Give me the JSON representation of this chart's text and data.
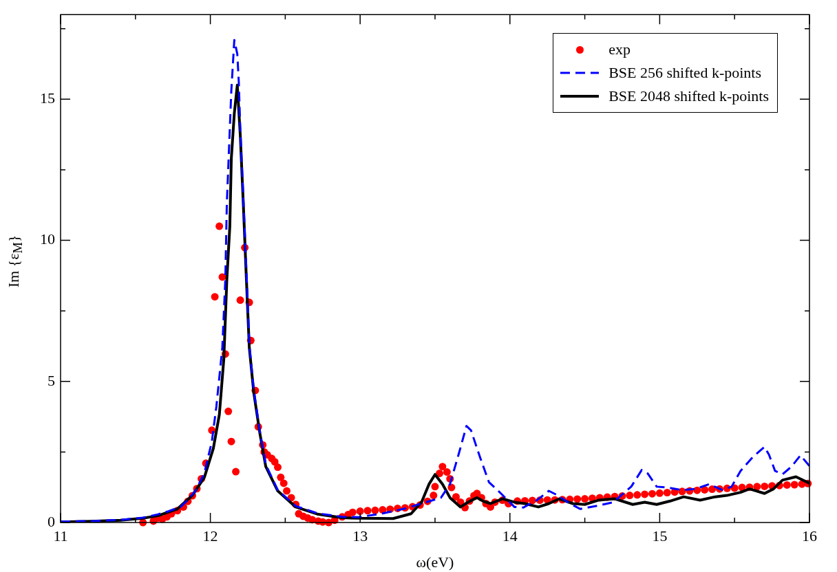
{
  "chart_data": {
    "type": "line",
    "xlabel": "ω(eV)",
    "ylabel": "Im {ε$_{M}$}",
    "xlim": [
      11,
      16
    ],
    "ylim": [
      0,
      18
    ],
    "xticks": [
      11,
      {
        "value": 11.5,
        "label": null
      },
      12,
      {
        "value": 12.5,
        "label": null
      },
      13,
      {
        "value": 13.5,
        "label": null
      },
      14,
      {
        "value": 14.5,
        "label": null
      },
      15,
      {
        "value": 15.5,
        "label": null
      },
      16
    ],
    "yticks": [
      0,
      {
        "value": 2.5,
        "label": null
      },
      5,
      {
        "value": 7.5,
        "label": null
      },
      10,
      {
        "value": 12.5,
        "label": null
      },
      15,
      {
        "value": 17.5,
        "label": null
      }
    ],
    "grid": false,
    "legend": "top right",
    "series": [
      {
        "name": "exp",
        "type": "scatter",
        "marker": "circle",
        "color": "#ff0000",
        "x": [
          11.55,
          11.62,
          11.65,
          11.68,
          11.71,
          11.74,
          11.78,
          11.82,
          11.85,
          11.88,
          11.91,
          11.94,
          11.97,
          12.01,
          12.03,
          12.06,
          12.08,
          12.1,
          12.12,
          12.14,
          12.17,
          12.2,
          12.23,
          12.26,
          12.27,
          12.3,
          12.32,
          12.35,
          12.36,
          12.38,
          12.41,
          12.43,
          12.45,
          12.47,
          12.49,
          12.51,
          12.54,
          12.57,
          12.59,
          12.62,
          12.65,
          12.68,
          12.72,
          12.75,
          12.79,
          12.83,
          12.88,
          12.92,
          12.95,
          13.0,
          13.05,
          13.1,
          13.15,
          13.2,
          13.25,
          13.3,
          13.35,
          13.4,
          13.45,
          13.49,
          13.5,
          13.53,
          13.55,
          13.58,
          13.6,
          13.61,
          13.64,
          13.67,
          13.7,
          13.73,
          13.76,
          13.78,
          13.81,
          13.84,
          13.87,
          13.9,
          13.95,
          13.99,
          14.05,
          14.1,
          14.15,
          14.2,
          14.25,
          14.3,
          14.35,
          14.4,
          14.45,
          14.5,
          14.55,
          14.6,
          14.65,
          14.7,
          14.75,
          14.8,
          14.85,
          14.9,
          14.95,
          15.0,
          15.05,
          15.1,
          15.15,
          15.2,
          15.25,
          15.3,
          15.35,
          15.4,
          15.45,
          15.5,
          15.55,
          15.6,
          15.65,
          15.7,
          15.75,
          15.8,
          15.85,
          15.9,
          15.95,
          15.99
        ],
        "values": [
          0.0,
          0.05,
          0.16,
          0.12,
          0.2,
          0.31,
          0.42,
          0.55,
          0.75,
          0.95,
          1.2,
          1.55,
          2.1,
          3.27,
          8.0,
          10.5,
          8.7,
          5.97,
          3.94,
          2.87,
          1.8,
          7.88,
          9.74,
          7.8,
          6.45,
          4.68,
          3.39,
          2.75,
          2.5,
          2.4,
          2.27,
          2.15,
          1.96,
          1.6,
          1.39,
          1.12,
          0.88,
          0.64,
          0.31,
          0.22,
          0.16,
          0.1,
          0.05,
          0.02,
          0.0,
          0.08,
          0.2,
          0.28,
          0.36,
          0.4,
          0.42,
          0.43,
          0.45,
          0.47,
          0.5,
          0.52,
          0.56,
          0.62,
          0.75,
          0.96,
          1.27,
          1.74,
          1.98,
          1.79,
          1.55,
          1.24,
          0.91,
          0.72,
          0.53,
          0.76,
          0.95,
          1.03,
          0.88,
          0.67,
          0.55,
          0.72,
          0.79,
          0.67,
          0.76,
          0.77,
          0.78,
          0.79,
          0.8,
          0.8,
          0.81,
          0.82,
          0.83,
          0.84,
          0.86,
          0.88,
          0.9,
          0.92,
          0.94,
          0.96,
          0.98,
          1.0,
          1.02,
          1.04,
          1.06,
          1.08,
          1.1,
          1.12,
          1.14,
          1.16,
          1.18,
          1.19,
          1.21,
          1.22,
          1.24,
          1.25,
          1.27,
          1.28,
          1.3,
          1.31,
          1.33,
          1.34,
          1.36,
          1.38
        ]
      },
      {
        "name": "BSE 256 shifted k-points",
        "type": "line",
        "line_style": "dashed",
        "color": "#0000ff",
        "x": [
          11,
          11.2,
          11.4,
          11.55,
          11.65,
          11.72,
          11.8,
          11.85,
          11.9,
          11.96,
          12.01,
          12.04,
          12.08,
          12.1,
          12.11,
          12.14,
          12.16,
          12.18,
          12.19,
          12.2,
          12.22,
          12.24,
          12.26,
          12.29,
          12.33,
          12.37,
          12.45,
          12.57,
          12.72,
          12.88,
          12.99,
          13.14,
          13.29,
          13.44,
          13.54,
          13.6,
          13.66,
          13.71,
          13.74,
          13.8,
          13.86,
          13.94,
          14.03,
          14.09,
          14.18,
          14.26,
          14.32,
          14.4,
          14.47,
          14.59,
          14.69,
          14.81,
          14.88,
          14.92,
          14.98,
          15.05,
          15.15,
          15.24,
          15.33,
          15.42,
          15.48,
          15.54,
          15.62,
          15.7,
          15.73,
          15.77,
          15.82,
          15.88,
          15.94,
          16.0
        ],
        "values": [
          0.03,
          0.05,
          0.09,
          0.17,
          0.29,
          0.4,
          0.55,
          0.8,
          1.12,
          1.75,
          2.87,
          4.1,
          6.2,
          8.6,
          11.3,
          15.3,
          17.1,
          16.6,
          15.6,
          13.9,
          11.5,
          9.0,
          6.3,
          4.7,
          3.25,
          2.05,
          1.15,
          0.58,
          0.32,
          0.2,
          0.19,
          0.31,
          0.48,
          0.72,
          0.88,
          1.36,
          2.46,
          3.42,
          3.27,
          2.32,
          1.43,
          1.03,
          0.55,
          0.53,
          0.79,
          1.12,
          0.96,
          0.67,
          0.48,
          0.6,
          0.72,
          1.27,
          1.86,
          1.74,
          1.27,
          1.24,
          1.15,
          1.19,
          1.36,
          1.15,
          1.27,
          1.83,
          2.31,
          2.68,
          2.4,
          1.83,
          1.71,
          1.98,
          2.38,
          2.0
        ]
      },
      {
        "name": "BSE 2048 shifted k-points",
        "type": "line",
        "line_style": "solid",
        "color": "#000000",
        "x": [
          11,
          11.2,
          11.4,
          11.55,
          11.65,
          11.78,
          11.88,
          11.96,
          12.02,
          12.06,
          12.09,
          12.11,
          12.13,
          12.14,
          12.16,
          12.18,
          12.2,
          12.22,
          12.24,
          12.26,
          12.29,
          12.33,
          12.37,
          12.45,
          12.57,
          12.72,
          12.88,
          12.99,
          13.22,
          13.34,
          13.41,
          13.46,
          13.5,
          13.55,
          13.6,
          13.67,
          13.72,
          13.78,
          13.82,
          13.87,
          13.95,
          14.03,
          14.1,
          14.19,
          14.26,
          14.33,
          14.42,
          14.5,
          14.59,
          14.7,
          14.82,
          14.9,
          14.98,
          15.07,
          15.16,
          15.27,
          15.37,
          15.45,
          15.54,
          15.6,
          15.7,
          15.76,
          15.82,
          15.91,
          16.0
        ],
        "values": [
          0.02,
          0.04,
          0.08,
          0.15,
          0.24,
          0.48,
          0.96,
          1.6,
          2.63,
          3.82,
          5.8,
          8.6,
          10.5,
          12.9,
          14.5,
          15.5,
          13.7,
          11.3,
          8.7,
          6.2,
          4.6,
          3.18,
          1.98,
          1.12,
          0.55,
          0.29,
          0.17,
          0.15,
          0.14,
          0.31,
          0.72,
          1.36,
          1.7,
          1.36,
          0.88,
          0.55,
          0.72,
          0.88,
          0.76,
          0.67,
          0.84,
          0.72,
          0.67,
          0.55,
          0.67,
          0.84,
          0.67,
          0.64,
          0.79,
          0.84,
          0.64,
          0.72,
          0.64,
          0.76,
          0.91,
          0.79,
          0.91,
          0.96,
          1.07,
          1.19,
          1.03,
          1.19,
          1.5,
          1.62,
          1.39
        ]
      }
    ]
  }
}
